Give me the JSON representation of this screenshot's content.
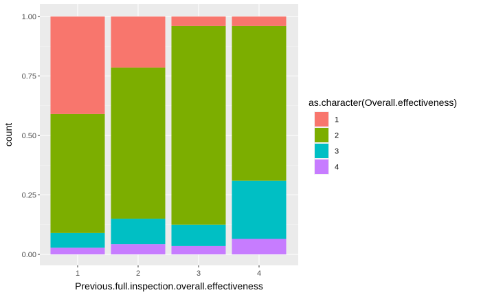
{
  "chart_data": {
    "type": "bar",
    "stacked": true,
    "categories": [
      "1",
      "2",
      "3",
      "4"
    ],
    "xlabel": "Previous.full.inspection.overall.effectiveness",
    "ylabel": "count",
    "ylim": [
      0,
      1.0
    ],
    "yticks": [
      "0.00",
      "0.25",
      "0.50",
      "0.75",
      "1.00"
    ],
    "grid": true,
    "legend": {
      "title": "as.character(Overall.effectiveness)",
      "placement": "right"
    },
    "series": [
      {
        "name": "1",
        "color": "#F8766D",
        "values": [
          0.41,
          0.215,
          0.04,
          0.04
        ]
      },
      {
        "name": "2",
        "color": "#7CAE00",
        "values": [
          0.5,
          0.635,
          0.835,
          0.65
        ]
      },
      {
        "name": "3",
        "color": "#00BFC4",
        "values": [
          0.062,
          0.107,
          0.09,
          0.245
        ]
      },
      {
        "name": "4",
        "color": "#C77CFF",
        "values": [
          0.028,
          0.043,
          0.035,
          0.065
        ]
      }
    ]
  }
}
